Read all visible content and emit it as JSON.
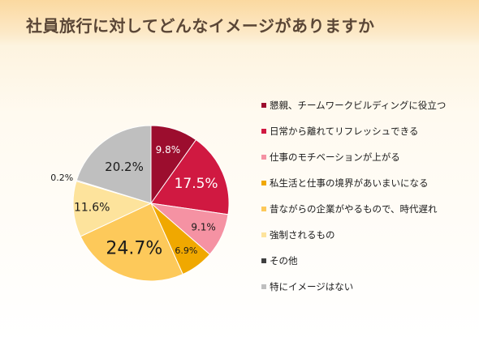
{
  "title": "社員旅行に対してどんなイメージがありますか",
  "chart_data": {
    "type": "pie",
    "categories": [
      "懇親、チームワークビルディングに役立つ",
      "日常から離れてリフレッシュできる",
      "仕事のモチベーションが上がる",
      "私生活と仕事の境界があいまいになる",
      "昔ながらの企業がやるもので、時代遅れ",
      "強制されるもの",
      "その他",
      "特にイメージはない"
    ],
    "values": [
      9.8,
      17.5,
      9.1,
      6.9,
      24.7,
      11.6,
      0.2,
      20.2
    ],
    "labels": [
      "9.8%",
      "17.5%",
      "9.1%",
      "6.9%",
      "24.7%",
      "11.6%",
      "0.2%",
      "20.2%"
    ],
    "colors": [
      "#9c0d2e",
      "#d01941",
      "#f592a3",
      "#f0a800",
      "#fdc95a",
      "#fde39c",
      "#404040",
      "#bfbfbf"
    ],
    "label_colors": [
      "#ffffff",
      "#ffffff",
      "#1a1a1a",
      "#1a1a1a",
      "#1a1a1a",
      "#1a1a1a",
      "#1a1a1a",
      "#1a1a1a"
    ],
    "start_angle": "12 o'clock",
    "direction": "clockwise",
    "legend_position": "right"
  }
}
